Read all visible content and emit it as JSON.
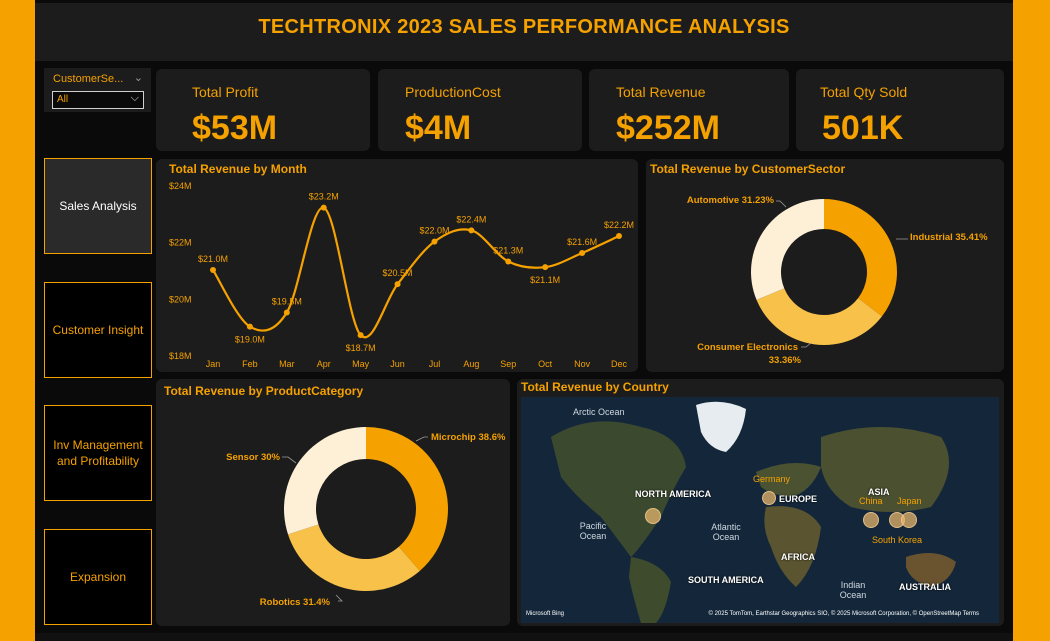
{
  "header": {
    "title": "TECHTRONIX 2023 SALES PERFORMANCE ANALYSIS"
  },
  "slicer": {
    "title": "CustomerSe...",
    "value": "All"
  },
  "nav": [
    {
      "label": "Sales Analysis"
    },
    {
      "label": "Customer Insight"
    },
    {
      "label": "Inv Management and Profitability"
    },
    {
      "label": "Expansion"
    }
  ],
  "kpis": [
    {
      "label": "Total Profit",
      "value": "$53M"
    },
    {
      "label": "ProductionCost",
      "value": "$4M"
    },
    {
      "label": "Total Revenue",
      "value": "$252M"
    },
    {
      "label": "Total Qty Sold",
      "value": "501K"
    }
  ],
  "colors": {
    "accent": "#f5a100",
    "light": "#fdf0d6",
    "mid": "#f8c24a",
    "panel": "#1c1c1c"
  },
  "chart_data": [
    {
      "type": "line",
      "title": "Total Revenue by Month",
      "categories": [
        "Jan",
        "Feb",
        "Mar",
        "Apr",
        "May",
        "Jun",
        "Jul",
        "Aug",
        "Sep",
        "Oct",
        "Nov",
        "Dec"
      ],
      "values": [
        21.0,
        19.0,
        19.5,
        23.2,
        18.7,
        20.5,
        22.0,
        22.4,
        21.3,
        21.1,
        21.6,
        22.2
      ],
      "data_labels": [
        "$21.0M",
        "$19.0M",
        "$19.5M",
        "$23.2M",
        "$18.7M",
        "$20.5M",
        "$22.0M",
        "$22.4M",
        "$21.3M",
        "$21.1M",
        "$21.6M",
        "$22.2M"
      ],
      "yticks": [
        "$18M",
        "$20M",
        "$22M",
        "$24M"
      ],
      "ylim": [
        18,
        24
      ],
      "grid": false
    },
    {
      "type": "pie",
      "title": "Total Revenue by CustomerSector",
      "categories": [
        "Industrial",
        "Consumer Electronics",
        "Automotive"
      ],
      "values": [
        35.41,
        33.36,
        31.23
      ],
      "labels": [
        "Industrial 35.41%",
        "Consumer Electronics",
        "33.36%",
        "Automotive 31.23%"
      ]
    },
    {
      "type": "pie",
      "title": "Total Revenue by ProductCategory",
      "categories": [
        "Microchip",
        "Robotics",
        "Sensor"
      ],
      "values": [
        38.6,
        31.4,
        30
      ],
      "labels": [
        "Microchip 38.6%",
        "Robotics 31.4%",
        "Sensor 30%"
      ]
    }
  ],
  "map": {
    "title": "Total Revenue by Country",
    "continents": [
      "NORTH AMERICA",
      "EUROPE",
      "ASIA",
      "AFRICA",
      "SOUTH AMERICA",
      "AUSTRALIA"
    ],
    "oceans": [
      "Arctic Ocean",
      "Pacific Ocean",
      "Atlantic Ocean",
      "Indian Ocean"
    ],
    "countries": [
      "Germany",
      "China",
      "Japan",
      "South Korea"
    ],
    "attribution": "© 2025 TomTom, Earthstar Geographics SIO, © 2025 Microsoft Corporation, © OpenStreetMap  Terms",
    "logo": "Microsoft Bing"
  }
}
